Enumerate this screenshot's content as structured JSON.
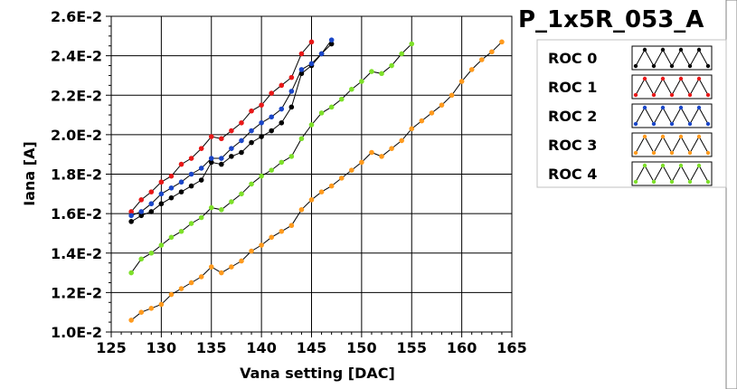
{
  "chart_data": {
    "type": "line",
    "title": "P_1x5R_053_A",
    "xlabel": "Vana setting [DAC]",
    "ylabel": "Iana [A]",
    "xlim": [
      125,
      165
    ],
    "ylim": [
      0.01,
      0.026
    ],
    "xticks": [
      125,
      130,
      135,
      140,
      145,
      150,
      155,
      160,
      165
    ],
    "yticks": [
      0.01,
      0.012,
      0.014,
      0.016,
      0.018,
      0.02,
      0.022,
      0.024,
      0.026
    ],
    "yticklabels": [
      "1.0E-2",
      "1.2E-2",
      "1.4E-2",
      "1.6E-2",
      "1.8E-2",
      "2.0E-2",
      "2.2E-2",
      "2.4E-2",
      "2.6E-2"
    ],
    "grid": true,
    "legend_position": "right",
    "series": [
      {
        "name": "ROC 0",
        "color": "#000000",
        "x": [
          127,
          128,
          129,
          130,
          131,
          132,
          133,
          134,
          135,
          136,
          137,
          138,
          139,
          140,
          141,
          142,
          143,
          144,
          145,
          146,
          147
        ],
        "y": [
          0.0156,
          0.0159,
          0.0161,
          0.0165,
          0.0168,
          0.0171,
          0.0174,
          0.0177,
          0.0186,
          0.0185,
          0.0189,
          0.0191,
          0.0196,
          0.0199,
          0.0202,
          0.0206,
          0.0214,
          0.0231,
          0.0235,
          0.0241,
          0.0246
        ]
      },
      {
        "name": "ROC 1",
        "color": "#e81818",
        "x": [
          127,
          128,
          129,
          130,
          131,
          132,
          133,
          134,
          135,
          136,
          137,
          138,
          139,
          140,
          141,
          142,
          143,
          144,
          145
        ],
        "y": [
          0.0161,
          0.0167,
          0.0171,
          0.0176,
          0.0179,
          0.0185,
          0.0188,
          0.0193,
          0.0199,
          0.0198,
          0.0202,
          0.0206,
          0.0212,
          0.0215,
          0.0221,
          0.0225,
          0.0229,
          0.0241,
          0.0247
        ]
      },
      {
        "name": "ROC 2",
        "color": "#1a46c8",
        "x": [
          127,
          128,
          129,
          130,
          131,
          132,
          133,
          134,
          135,
          136,
          137,
          138,
          139,
          140,
          141,
          142,
          143,
          144,
          145,
          146,
          147
        ],
        "y": [
          0.0159,
          0.0161,
          0.0165,
          0.017,
          0.0173,
          0.0176,
          0.018,
          0.0183,
          0.0188,
          0.0188,
          0.0193,
          0.0197,
          0.0202,
          0.0206,
          0.0209,
          0.0213,
          0.0222,
          0.0233,
          0.0236,
          0.0241,
          0.0248
        ]
      },
      {
        "name": "ROC 3",
        "color": "#ff9a1e",
        "x": [
          127,
          128,
          129,
          130,
          131,
          132,
          133,
          134,
          135,
          136,
          137,
          138,
          139,
          140,
          141,
          142,
          143,
          144,
          145,
          146,
          147,
          148,
          149,
          150,
          151,
          152,
          153,
          154,
          155,
          156,
          157,
          158,
          159,
          160,
          161,
          162,
          163,
          164
        ],
        "y": [
          0.0106,
          0.011,
          0.0112,
          0.0114,
          0.0119,
          0.0122,
          0.0125,
          0.0128,
          0.0133,
          0.013,
          0.0133,
          0.0136,
          0.0141,
          0.0144,
          0.0148,
          0.0151,
          0.0154,
          0.0162,
          0.0167,
          0.0171,
          0.0174,
          0.0178,
          0.0182,
          0.0186,
          0.0191,
          0.0189,
          0.0193,
          0.0197,
          0.0203,
          0.0207,
          0.0211,
          0.0215,
          0.022,
          0.0227,
          0.0233,
          0.0238,
          0.0242,
          0.0247
        ]
      },
      {
        "name": "ROC 4",
        "color": "#7ee02a",
        "x": [
          127,
          128,
          129,
          130,
          131,
          132,
          133,
          134,
          135,
          136,
          137,
          138,
          139,
          140,
          141,
          142,
          143,
          144,
          145,
          146,
          147,
          148,
          149,
          150,
          151,
          152,
          153,
          154,
          155
        ],
        "y": [
          0.013,
          0.0137,
          0.014,
          0.0144,
          0.0148,
          0.0151,
          0.0155,
          0.0158,
          0.0163,
          0.0162,
          0.0166,
          0.017,
          0.0175,
          0.0179,
          0.0182,
          0.0186,
          0.0189,
          0.0198,
          0.0205,
          0.0211,
          0.0214,
          0.0218,
          0.0223,
          0.0227,
          0.0232,
          0.0231,
          0.0235,
          0.0241,
          0.0246
        ]
      }
    ]
  }
}
